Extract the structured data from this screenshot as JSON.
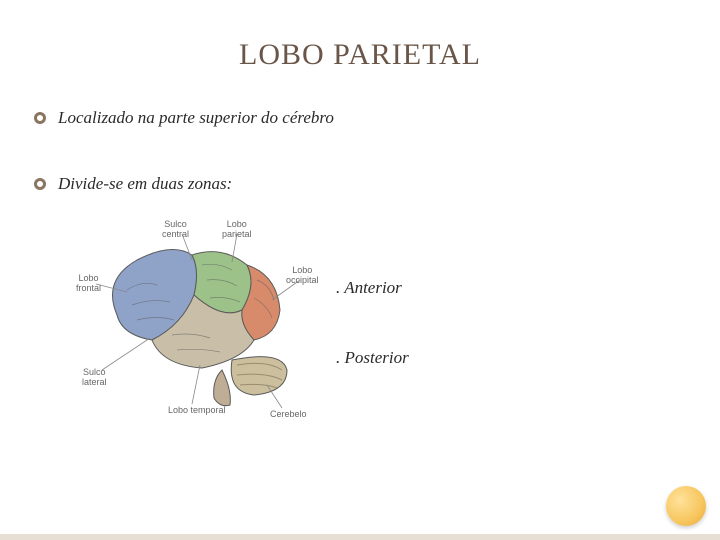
{
  "title": "LOBO PARIETAL",
  "bullets": [
    {
      "text": "Localizado na parte superior do cérebro"
    },
    {
      "text": "Divide-se em duas zonas:"
    }
  ],
  "zones": {
    "anterior": ". Anterior",
    "posterior": ". Posterior"
  },
  "brain": {
    "labels": {
      "sulco_central": "Sulco\ncentral",
      "lobo_parietal": "Lobo\nparietal",
      "lobo_frontal": "Lobo\nfrontal",
      "lobo_occipital": "Lobo\noccipital",
      "sulco_lateral": "Sulco\nlateral",
      "lobo_temporal": "Lobo temporal",
      "cerebelo": "Cerebelo"
    },
    "colors": {
      "frontal": "#8fa2c8",
      "parietal": "#9cc28a",
      "occipital": "#d88b6a",
      "temporal": "#c9bfa8",
      "cerebellum": "#cbbf9e",
      "brainstem": "#bfae95",
      "outline": "#5a5a5a",
      "lead": "#888888"
    }
  },
  "accent_circle": "#f7c65e",
  "title_color": "#6a5648",
  "text_color": "#2a2a2a"
}
